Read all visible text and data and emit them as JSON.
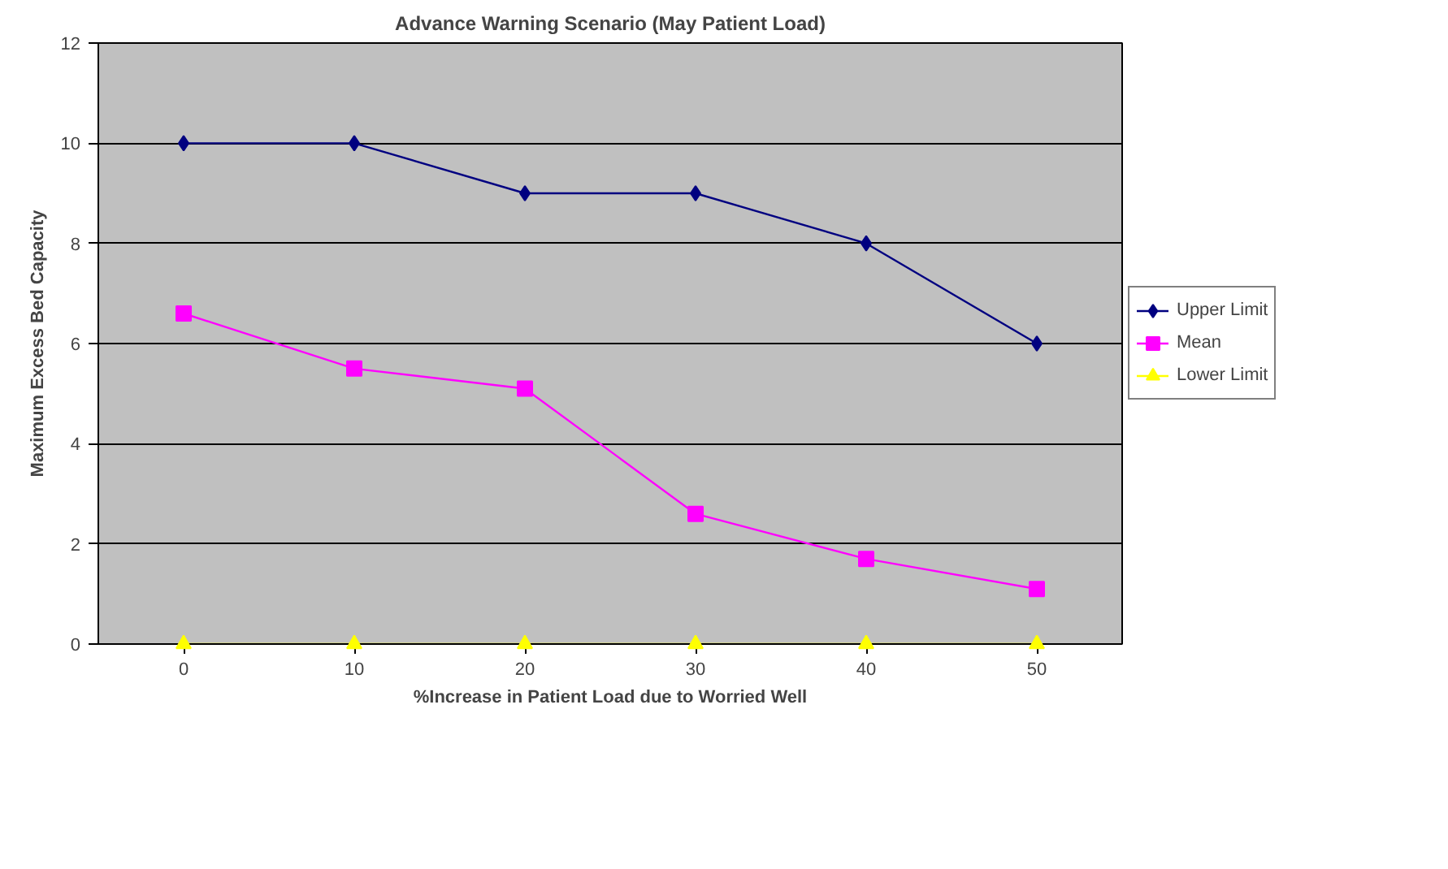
{
  "chart_data": {
    "type": "line",
    "title": "Advance Warning Scenario (May Patient Load)",
    "xlabel": "%Increase in Patient Load due to Worried Well",
    "ylabel": "Maximum Excess Bed Capacity",
    "categories": [
      "0",
      "10",
      "20",
      "30",
      "40",
      "50"
    ],
    "series": [
      {
        "name": "Upper Limit",
        "color": "#000080",
        "marker": "diamond",
        "values": [
          10,
          10,
          9,
          9,
          8,
          6
        ]
      },
      {
        "name": "Mean",
        "color": "#ff00ff",
        "marker": "square",
        "values": [
          6.6,
          5.5,
          5.1,
          2.6,
          1.7,
          1.1
        ]
      },
      {
        "name": "Lower Limit",
        "color": "#ffff00",
        "marker": "triangle",
        "values": [
          0,
          0,
          0,
          0,
          0,
          0
        ]
      }
    ],
    "ylim": [
      0,
      12
    ],
    "yticks": [
      0,
      2,
      4,
      6,
      8,
      10,
      12
    ],
    "grid": "y",
    "legend": "right",
    "line_style": "solid"
  }
}
